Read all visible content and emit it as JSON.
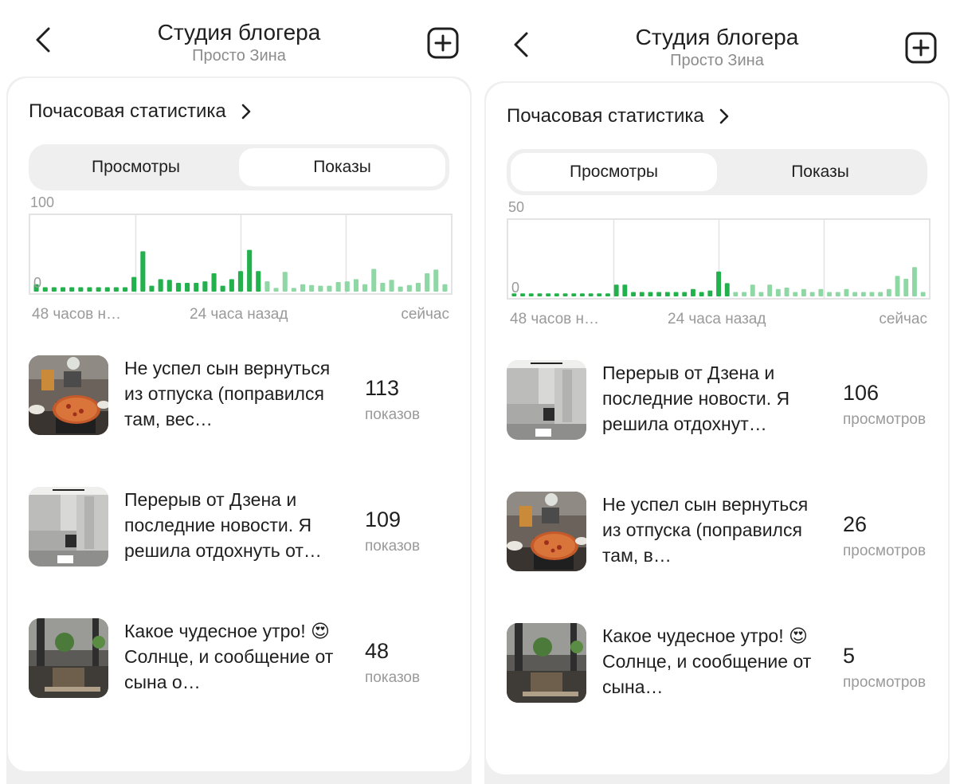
{
  "panels": [
    {
      "header": {
        "title": "Студия блогера",
        "subtitle": "Просто Зина"
      },
      "section_title": "Почасовая статистика",
      "tabs": {
        "views": "Просмотры",
        "impressions": "Показы",
        "active": "impressions"
      },
      "chart_data": {
        "type": "bar",
        "y_max_label": "100",
        "y_min_label": "0",
        "ylim": [
          0,
          100
        ],
        "x_labels": [
          "48 часов н…",
          "24 часа назад",
          "сейчас"
        ],
        "values": [
          10,
          6,
          6,
          6,
          6,
          6,
          6,
          6,
          6,
          6,
          6,
          20,
          55,
          8,
          17,
          16,
          12,
          12,
          12,
          14,
          25,
          8,
          17,
          28,
          57,
          28,
          14,
          5,
          27,
          5,
          10,
          9,
          8,
          8,
          13,
          14,
          17,
          10,
          31,
          12,
          16,
          7,
          9,
          12,
          25,
          30,
          10
        ],
        "highlight_from": 26,
        "colors": {
          "dark": "#22b14c",
          "light": "#8fd8a6"
        }
      },
      "items": [
        {
          "text": "Не успел сын вернуться из отпуска (поправился там, вес…",
          "count": "113",
          "unit": "показов"
        },
        {
          "text": "Перерыв от Дзена и последние новости. Я решила отдохнуть от…",
          "count": "109",
          "unit": "показов"
        },
        {
          "text": "Какое чудесное утро! 😍 Солнце, и сообщение от сына о…",
          "count": "48",
          "unit": "показов"
        }
      ]
    },
    {
      "header": {
        "title": "Студия блогера",
        "subtitle": "Просто Зина"
      },
      "section_title": "Почасовая статистика",
      "tabs": {
        "views": "Просмотры",
        "impressions": "Показы",
        "active": "views"
      },
      "chart_data": {
        "type": "bar",
        "y_max_label": "50",
        "y_min_label": "0",
        "ylim": [
          0,
          50
        ],
        "x_labels": [
          "48 часов н…",
          "24 часа назад",
          "сейчас"
        ],
        "values": [
          2,
          2,
          2,
          2,
          2,
          2,
          2,
          2,
          2,
          2,
          2,
          2,
          8,
          8,
          3,
          3,
          3,
          3,
          3,
          3,
          3,
          5,
          3,
          4,
          17,
          9,
          3,
          3,
          8,
          3,
          8,
          5,
          6,
          3,
          5,
          3,
          5,
          3,
          3,
          5,
          3,
          3,
          3,
          3,
          5,
          14,
          12,
          20,
          3
        ],
        "highlight_from": 26,
        "colors": {
          "dark": "#22b14c",
          "light": "#8fd8a6"
        }
      },
      "items": [
        {
          "text": "Перерыв от Дзена и последние новости. Я решила отдохнут…",
          "count": "106",
          "unit": "просмотров"
        },
        {
          "text": "Не успел сын вернуться из отпуска (поправился там, в…",
          "count": "26",
          "unit": "просмотров"
        },
        {
          "text": "Какое чудесное утро! 😍 Солнце, и сообщение от сына…",
          "count": "5",
          "unit": "просмотров"
        }
      ]
    }
  ]
}
